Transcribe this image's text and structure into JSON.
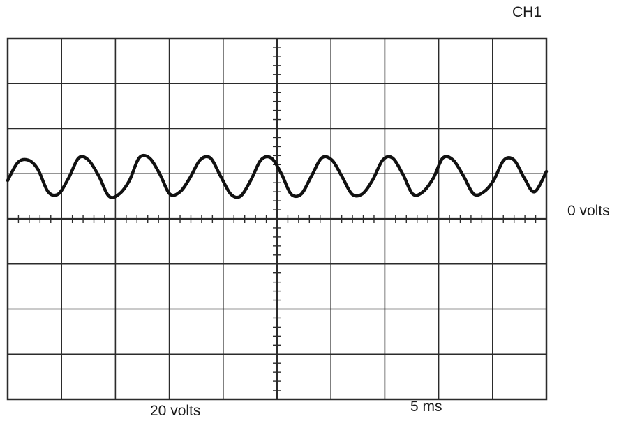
{
  "labels": {
    "channel": "CH1",
    "zero_reference": "0 volts",
    "volts_per_div": "20 volts",
    "time_per_div": "5 ms"
  },
  "colors": {
    "grid": "#2b2b2b",
    "faint_grid": "#bdbdbd",
    "trace": "#111111",
    "text": "#1a1a1a"
  },
  "chart_data": {
    "type": "line",
    "title": "",
    "xlabel": "",
    "ylabel": "",
    "x_divisions": 10,
    "y_divisions": 8,
    "xlim": [
      0,
      10
    ],
    "ylim": [
      -4,
      4
    ],
    "grid": true,
    "x": [
      0,
      0.19,
      0.38,
      0.56,
      0.75,
      0.94,
      1.13,
      1.32,
      1.5,
      1.69,
      1.88,
      2.07,
      2.26,
      2.44,
      2.63,
      2.82,
      3.01,
      3.2,
      3.38,
      3.57,
      3.76,
      3.95,
      4.14,
      4.32,
      4.51,
      4.7,
      4.89,
      5.08,
      5.26,
      5.45,
      5.64,
      5.83,
      6.02,
      6.2,
      6.39,
      6.58,
      6.77,
      6.96,
      7.14,
      7.33,
      7.52,
      7.71,
      7.9,
      8.08,
      8.27,
      8.46,
      8.65,
      8.84,
      9.02,
      9.21,
      9.4,
      9.59,
      9.78,
      10
    ],
    "series": [
      {
        "values": [
          0.85,
          1.25,
          1.3,
          1.1,
          0.6,
          0.55,
          0.9,
          1.35,
          1.3,
          0.95,
          0.5,
          0.55,
          0.85,
          1.35,
          1.35,
          1.0,
          0.55,
          0.6,
          0.9,
          1.3,
          1.35,
          0.95,
          0.55,
          0.5,
          0.85,
          1.3,
          1.35,
          1.0,
          0.55,
          0.55,
          0.95,
          1.35,
          1.3,
          0.95,
          0.55,
          0.55,
          0.85,
          1.3,
          1.35,
          1.0,
          0.55,
          0.6,
          0.9,
          1.35,
          1.3,
          0.95,
          0.55,
          0.6,
          0.85,
          1.3,
          1.3,
          0.9,
          0.6,
          1.05
        ]
      }
    ]
  }
}
